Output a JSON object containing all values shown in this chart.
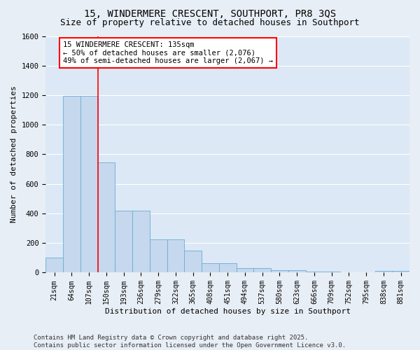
{
  "title_line1": "15, WINDERMERE CRESCENT, SOUTHPORT, PR8 3QS",
  "title_line2": "Size of property relative to detached houses in Southport",
  "xlabel": "Distribution of detached houses by size in Southport",
  "ylabel": "Number of detached properties",
  "bar_color": "#c5d8ed",
  "bar_edge_color": "#6aadd5",
  "background_color": "#dce8f5",
  "grid_color": "#ffffff",
  "categories": [
    "21sqm",
    "64sqm",
    "107sqm",
    "150sqm",
    "193sqm",
    "236sqm",
    "279sqm",
    "322sqm",
    "365sqm",
    "408sqm",
    "451sqm",
    "494sqm",
    "537sqm",
    "580sqm",
    "623sqm",
    "666sqm",
    "709sqm",
    "752sqm",
    "795sqm",
    "838sqm",
    "881sqm"
  ],
  "bar_heights": [
    100,
    1195,
    1195,
    745,
    420,
    420,
    225,
    225,
    150,
    65,
    65,
    30,
    30,
    15,
    15,
    5,
    5,
    0,
    0,
    10,
    10
  ],
  "ylim": [
    0,
    1600
  ],
  "yticks": [
    0,
    200,
    400,
    600,
    800,
    1000,
    1200,
    1400,
    1600
  ],
  "vline_x": 2.5,
  "annotation_title": "15 WINDERMERE CRESCENT: 135sqm",
  "annotation_line2": "← 50% of detached houses are smaller (2,076)",
  "annotation_line3": "49% of semi-detached houses are larger (2,067) →",
  "footer_line1": "Contains HM Land Registry data © Crown copyright and database right 2025.",
  "footer_line2": "Contains public sector information licensed under the Open Government Licence v3.0.",
  "fig_bg": "#e8eef5"
}
